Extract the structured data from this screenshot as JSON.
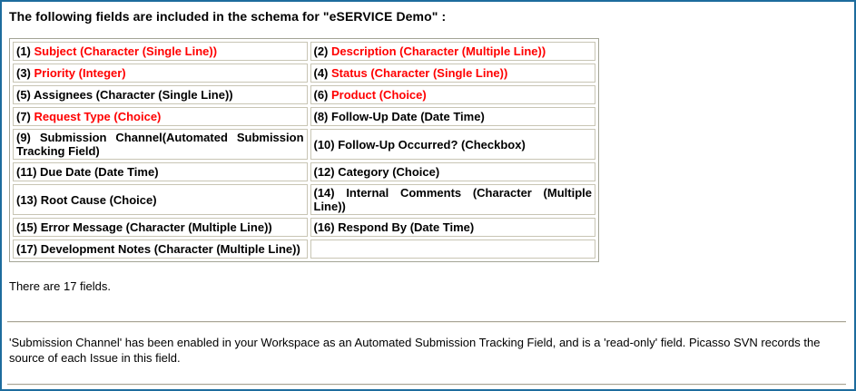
{
  "colors": {
    "page_border": "#1d6c9d",
    "field_highlight": "#ff0000",
    "table_outer_border": "#a3a496",
    "cell_border": "#c8c5b4",
    "text": "#000000"
  },
  "header": {
    "title": "The following fields are included in the schema for \"eSERVICE Demo\" :"
  },
  "schema_table": {
    "rows": [
      {
        "cells": [
          {
            "num": "(1)",
            "label": "Subject (Character (Single Line))",
            "highlighted": true
          },
          {
            "num": "(2)",
            "label": "Description (Character (Multiple Line))",
            "highlighted": true
          }
        ]
      },
      {
        "cells": [
          {
            "num": "(3)",
            "label": "Priority (Integer)",
            "highlighted": true
          },
          {
            "num": "(4)",
            "label": "Status (Character (Single Line))",
            "highlighted": true
          }
        ]
      },
      {
        "cells": [
          {
            "num": "(5)",
            "label": "Assignees (Character (Single Line))",
            "highlighted": false
          },
          {
            "num": "(6)",
            "label": "Product (Choice)",
            "highlighted": true
          }
        ]
      },
      {
        "cells": [
          {
            "num": "(7)",
            "label": "Request Type (Choice)",
            "highlighted": true
          },
          {
            "num": "(8)",
            "label": "Follow-Up Date (Date Time)",
            "highlighted": false
          }
        ]
      },
      {
        "cells": [
          {
            "num": "(9)",
            "label": "Submission Channel(Automated Submission Tracking Field)",
            "highlighted": false
          },
          {
            "num": "(10)",
            "label": "Follow-Up Occurred? (Checkbox)",
            "highlighted": false
          }
        ]
      },
      {
        "cells": [
          {
            "num": "(11)",
            "label": "Due Date (Date Time)",
            "highlighted": false
          },
          {
            "num": "(12)",
            "label": "Category (Choice)",
            "highlighted": false
          }
        ]
      },
      {
        "cells": [
          {
            "num": "(13)",
            "label": "Root Cause (Choice)",
            "highlighted": false
          },
          {
            "num": "(14)",
            "label": "Internal Comments (Character (Multiple Line))",
            "highlighted": false
          }
        ]
      },
      {
        "cells": [
          {
            "num": "(15)",
            "label": "Error Message (Character (Multiple Line))",
            "highlighted": false
          },
          {
            "num": "(16)",
            "label": "Respond By (Date Time)",
            "highlighted": false
          }
        ]
      },
      {
        "cells": [
          {
            "num": "(17)",
            "label": "Development Notes (Character (Multiple Line))",
            "highlighted": false
          },
          {
            "num": "",
            "label": "",
            "highlighted": false,
            "empty": true
          }
        ]
      }
    ]
  },
  "summary": {
    "text": "There are 17 fields."
  },
  "note": {
    "text": "'Submission Channel' has been enabled in your Workspace as an Automated Submission Tracking Field, and is a 'read-only' field. Picasso SVN records the source of each Issue in this field."
  }
}
